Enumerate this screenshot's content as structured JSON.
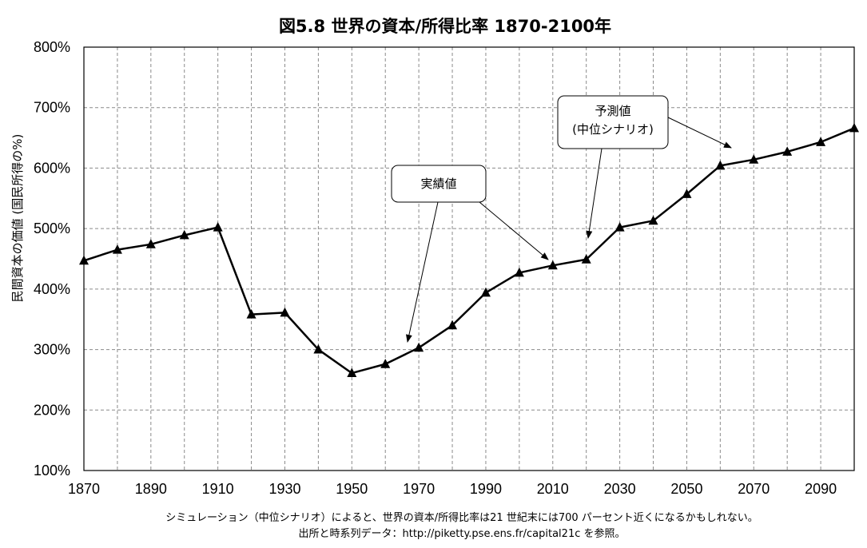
{
  "chart_data": {
    "type": "line",
    "title": "図5.8 世界の資本/所得比率 1870-2100年",
    "ylabel": "民間資本の価値 (国民所得の%)",
    "xlabel": "",
    "xlim": [
      1870,
      2100
    ],
    "ylim": [
      100,
      800
    ],
    "x_ticks": [
      "1870",
      "1890",
      "1910",
      "1930",
      "1950",
      "1970",
      "1990",
      "2010",
      "2030",
      "2050",
      "2070",
      "2090"
    ],
    "y_ticks": [
      "100%",
      "200%",
      "300%",
      "400%",
      "500%",
      "600%",
      "700%",
      "800%"
    ],
    "grid": true,
    "series": [
      {
        "x": [
          1870,
          1880,
          1890,
          1900,
          1910,
          1920,
          1930,
          1940,
          1950,
          1960,
          1970,
          1980,
          1990,
          2000,
          2010,
          2020,
          2030,
          2040,
          2050,
          2060,
          2070,
          2080,
          2090,
          2100
        ],
        "values": [
          447,
          465,
          474,
          489,
          502,
          358,
          361,
          300,
          261,
          276,
          303,
          340,
          394,
          427,
          439,
          449,
          502,
          513,
          557,
          604,
          614,
          627,
          643,
          666
        ],
        "marker": "triangle",
        "color": "#000000"
      }
    ],
    "annotations": [
      {
        "label": "実績値",
        "lines": [
          "実績値"
        ]
      },
      {
        "label": "予測値 (中位シナリオ)",
        "lines": [
          "予測値",
          "(中位シナリオ)"
        ]
      }
    ],
    "footnotes": [
      "シミュレーション（中位シナリオ）によると、世界の資本/所得比率は21 世紀末には700 パーセント近くになるかもしれない。",
      "出所と時系列データ：http://piketty.pse.ens.fr/capital21c を参照。"
    ]
  }
}
